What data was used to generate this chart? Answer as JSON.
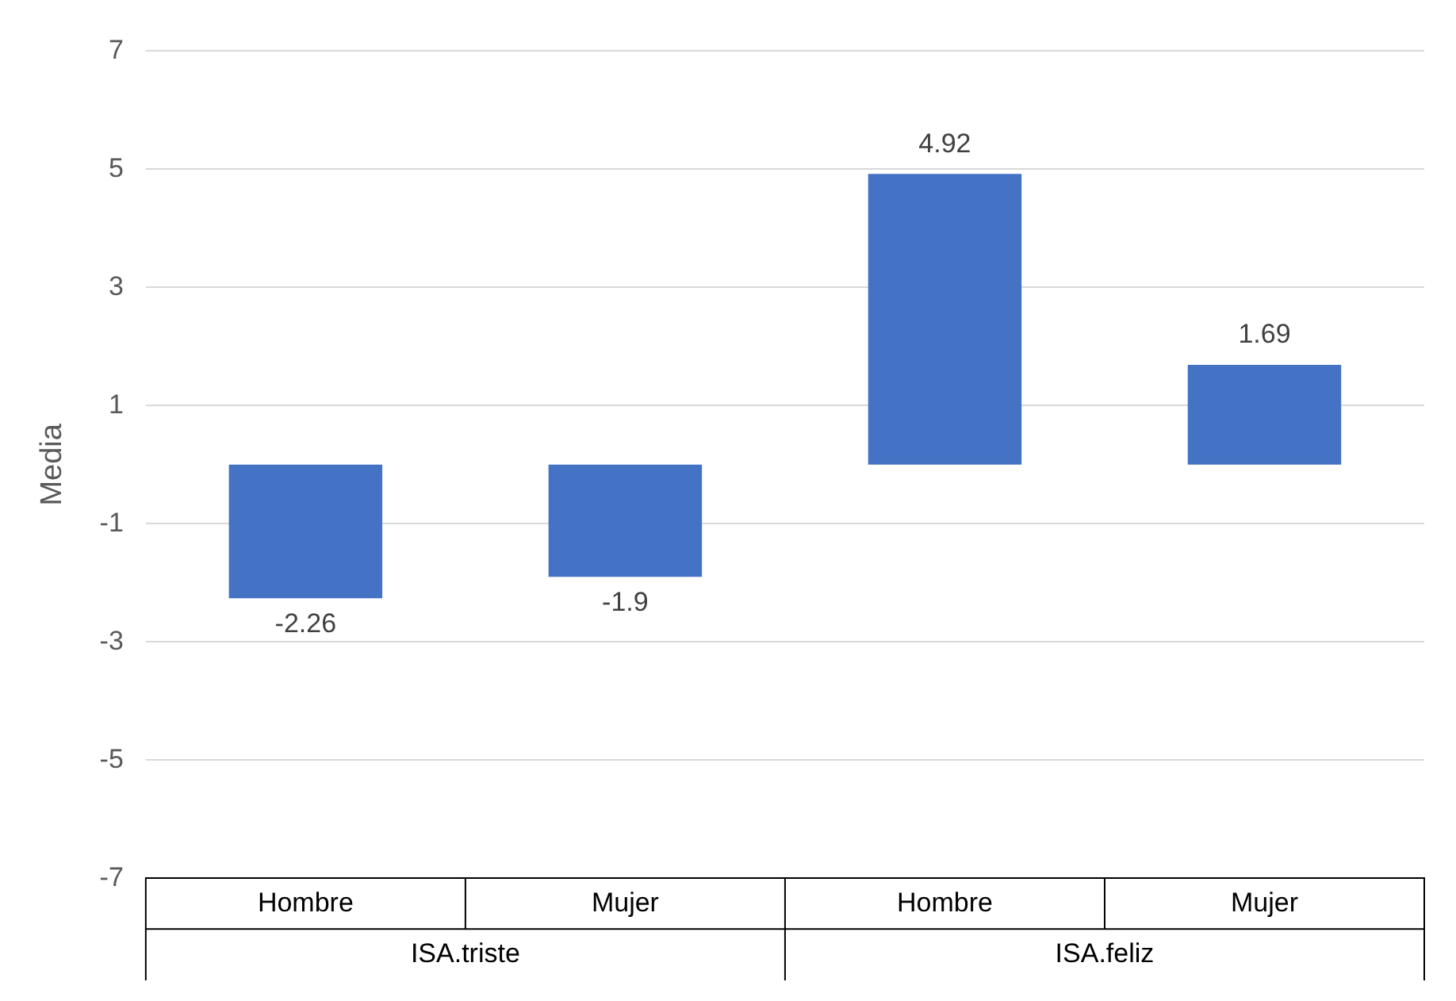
{
  "chart_data": {
    "type": "bar",
    "ylabel": "Media",
    "categories": [
      "Hombre",
      "Mujer",
      "Hombre",
      "Mujer"
    ],
    "values": [
      -2.26,
      -1.9,
      4.92,
      1.69
    ],
    "color": "#4472c4",
    "ylim": [
      -7,
      7
    ],
    "yticks": [
      -7,
      -5,
      -3,
      -1,
      1,
      3,
      5,
      7
    ],
    "grid": "y",
    "legend": false,
    "data_labels": true,
    "annotations": [
      "ISA.triste",
      "ISA.feliz"
    ]
  }
}
